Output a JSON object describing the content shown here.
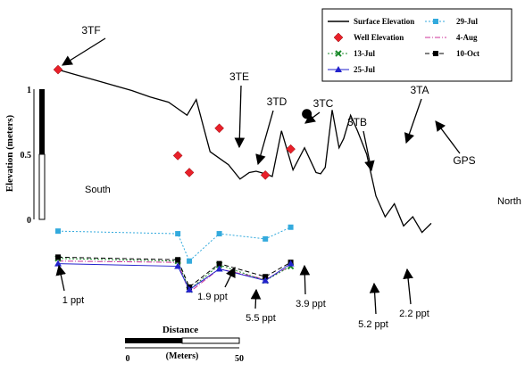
{
  "chart_data": {
    "type": "line",
    "title": "",
    "ylabel": "Elevation (meters)",
    "xlabel": "Distance",
    "distance_scale": {
      "label": "(Meters)",
      "ticks": [
        "0",
        "50"
      ]
    },
    "elevation_scale": {
      "ticks": [
        "1",
        "0.5",
        "0"
      ]
    },
    "side_labels": {
      "left": "South",
      "right": "North"
    },
    "legend": {
      "position": "top-right",
      "entries": [
        {
          "key": "surface",
          "label": "Surface Elevation",
          "color": "#000000",
          "style": "line"
        },
        {
          "key": "jul29",
          "label": "29-Jul",
          "color": "#33aadd",
          "style": "dotted-square"
        },
        {
          "key": "well",
          "label": "Well Elevation",
          "color": "#e8202a",
          "style": "diamond"
        },
        {
          "key": "aug4",
          "label": "4-Aug",
          "color": "#cc3399",
          "style": "dashdot"
        },
        {
          "key": "jul13",
          "label": "13-Jul",
          "color": "#1a8a2a",
          "style": "dotted-x"
        },
        {
          "key": "oct10",
          "label": "10-Oct",
          "color": "#000000",
          "style": "dashed-square"
        },
        {
          "key": "jul25",
          "label": "25-Jul",
          "color": "#2222cc",
          "style": "triangle"
        }
      ]
    },
    "surface_elevation": {
      "x": [
        0,
        8,
        16,
        24,
        32,
        40,
        48,
        52,
        56,
        60,
        66,
        74,
        79,
        83,
        86,
        90,
        93,
        97,
        102,
        107,
        112,
        114,
        116,
        119,
        122,
        124,
        127,
        130,
        134,
        138,
        142,
        146,
        150,
        154,
        158,
        162
      ],
      "y": [
        1.15,
        1.11,
        1.07,
        1.03,
        0.99,
        0.94,
        0.9,
        0.85,
        0.8,
        0.92,
        0.52,
        0.42,
        0.31,
        0.36,
        0.37,
        0.35,
        0.33,
        0.68,
        0.38,
        0.55,
        0.36,
        0.35,
        0.4,
        0.84,
        0.55,
        0.62,
        0.8,
        0.68,
        0.5,
        0.18,
        0.02,
        0.12,
        -0.05,
        0.02,
        -0.1,
        -0.03
      ]
    },
    "wells": [
      {
        "name": "3TF",
        "x": 0,
        "elevation": 1.15,
        "salinity": "1 ppt"
      },
      {
        "name": "3TE",
        "x": 52,
        "elevation": 0.49,
        "salinity": "1.9 ppt"
      },
      {
        "name": "3TD",
        "x": 57,
        "elevation": 0.36,
        "salinity": "5.5 ppt"
      },
      {
        "name": "3TC",
        "x": 70,
        "elevation": 0.7,
        "salinity": "3.9 ppt"
      },
      {
        "name": "3TB",
        "x": 90,
        "elevation": 0.34,
        "salinity": "5.2 ppt"
      },
      {
        "name": "3TA",
        "x": 101,
        "elevation": 0.54,
        "salinity": "2.2 ppt"
      }
    ],
    "gps": {
      "name": "GPS",
      "x": 108,
      "elevation": 0.81
    },
    "water_levels": {
      "x": [
        0,
        52,
        57,
        70,
        90,
        101
      ],
      "series": [
        {
          "key": "jul29",
          "name": "29-Jul",
          "values": [
            -0.09,
            -0.11,
            -0.32,
            -0.11,
            -0.15,
            -0.06
          ]
        },
        {
          "key": "aug4",
          "name": "4-Aug",
          "values": [
            -0.32,
            -0.33,
            -0.56,
            -0.38,
            -0.46,
            -0.36
          ]
        },
        {
          "key": "jul13",
          "name": "13-Jul",
          "values": [
            -0.3,
            -0.32,
            -0.54,
            -0.35,
            -0.47,
            -0.36
          ]
        },
        {
          "key": "oct10",
          "name": "10-Oct",
          "values": [
            -0.29,
            -0.31,
            -0.52,
            -0.34,
            -0.44,
            -0.33
          ]
        },
        {
          "key": "jul25",
          "name": "25-Jul",
          "values": [
            -0.34,
            -0.36,
            -0.54,
            -0.38,
            -0.47,
            -0.34
          ]
        }
      ]
    }
  }
}
